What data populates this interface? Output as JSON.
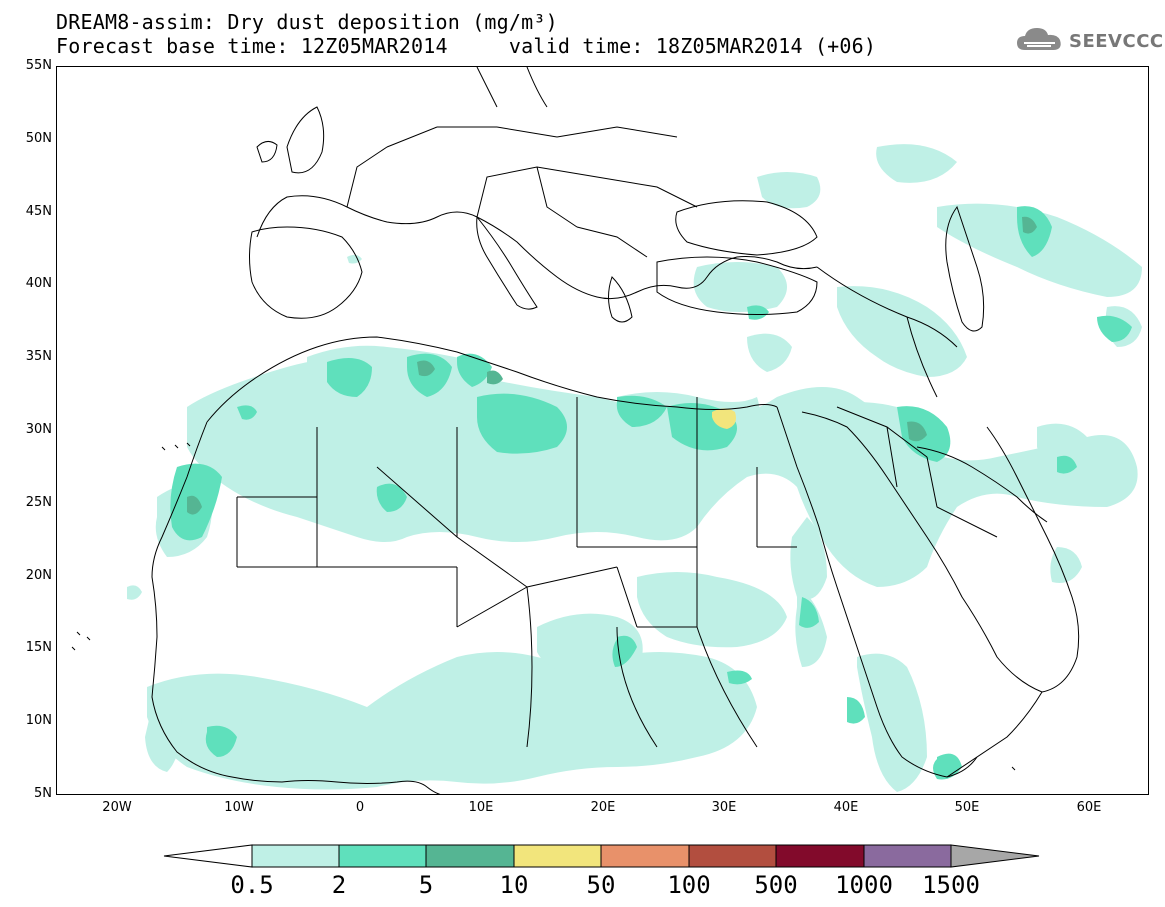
{
  "header": {
    "title_line1": "DREAM8-assim: Dry dust deposition (mg/m³)",
    "title_line2": "Forecast base time: 12Z05MAR2014     valid time: 18Z05MAR2014 (+06)"
  },
  "logo": {
    "text": "SEEVCCC",
    "icon": "cloud-icon"
  },
  "axes": {
    "lat_labels": [
      "55N",
      "50N",
      "45N",
      "40N",
      "35N",
      "30N",
      "25N",
      "20N",
      "15N",
      "10N",
      "5N"
    ],
    "lon_labels": [
      "20W",
      "10W",
      "0",
      "10E",
      "20E",
      "30E",
      "40E",
      "50E",
      "60E"
    ]
  },
  "colorbar": {
    "labels": [
      "0.5",
      "2",
      "5",
      "10",
      "50",
      "100",
      "500",
      "1000",
      "1500"
    ],
    "colors": [
      "#bff0e6",
      "#5fe0bc",
      "#55b593",
      "#f2e57c",
      "#e8916a",
      "#b24e3f",
      "#820a2b",
      "#8a6a9e",
      "#a7a7a7"
    ],
    "under_color": "#ffffff"
  },
  "map": {
    "extent": {
      "lon_min": -25,
      "lon_max": 65,
      "lat_min": 5,
      "lat_max": 55
    },
    "projection": "equirectangular",
    "overlay": "country-borders"
  }
}
